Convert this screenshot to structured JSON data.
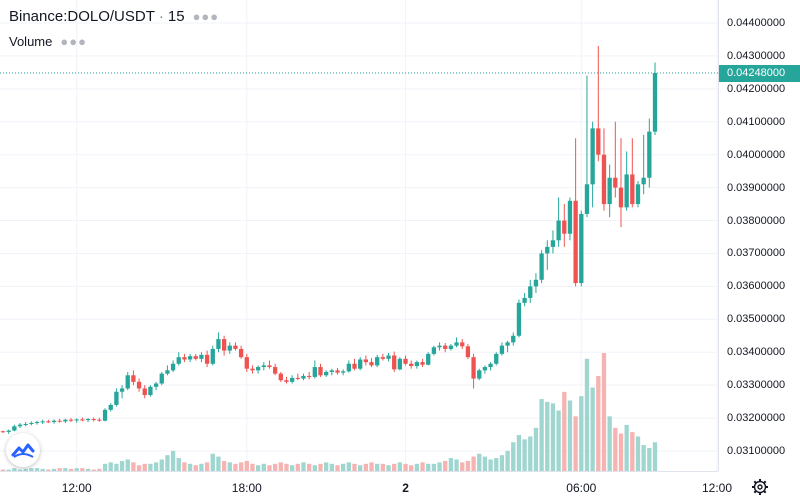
{
  "legend": {
    "symbol": "Binance:DOLO/USDT",
    "interval": "15",
    "volume_label": "Volume"
  },
  "price_axis": {
    "ticks": [
      "0.04400000",
      "0.04300000",
      "0.04200000",
      "0.04100000",
      "0.04000000",
      "0.03900000",
      "0.03800000",
      "0.03700000",
      "0.03600000",
      "0.03500000",
      "0.03400000",
      "0.03300000",
      "0.03200000",
      "0.03100000"
    ],
    "last_price": "0.04248000"
  },
  "time_axis": {
    "ticks": [
      "12:00",
      "18:00",
      "2",
      "06:00",
      "12:00"
    ]
  },
  "icons": {
    "menu": "more-horizontal-icon",
    "logo": "tradingview-logo-icon",
    "settings": "gear-icon"
  },
  "colors": {
    "up": "#26a69a",
    "down": "#ef5350",
    "up_volume": "#9fd6d0",
    "down_volume": "#f5b4b2",
    "last_price_line": "#26a69a"
  },
  "chart_data": {
    "type": "candlestick",
    "candles": [
      [
        0.0316,
        0.03162,
        0.03155,
        0.03158
      ],
      [
        0.03158,
        0.03165,
        0.03152,
        0.03162
      ],
      [
        0.03162,
        0.0318,
        0.0316,
        0.03175
      ],
      [
        0.03175,
        0.03185,
        0.0317,
        0.0318
      ],
      [
        0.0318,
        0.03188,
        0.03175,
        0.03182
      ],
      [
        0.03182,
        0.0319,
        0.03178,
        0.03185
      ],
      [
        0.03185,
        0.03192,
        0.0318,
        0.03188
      ],
      [
        0.03188,
        0.03195,
        0.03182,
        0.0319
      ],
      [
        0.0319,
        0.03195,
        0.03185,
        0.03188
      ],
      [
        0.03188,
        0.03196,
        0.03183,
        0.03192
      ],
      [
        0.03192,
        0.03198,
        0.03186,
        0.0319
      ],
      [
        0.0319,
        0.03198,
        0.03185,
        0.03195
      ],
      [
        0.03195,
        0.032,
        0.03188,
        0.03193
      ],
      [
        0.03193,
        0.03199,
        0.03186,
        0.03196
      ],
      [
        0.03196,
        0.03202,
        0.0319,
        0.03194
      ],
      [
        0.03194,
        0.032,
        0.03188,
        0.03197
      ],
      [
        0.03197,
        0.03202,
        0.0319,
        0.03195
      ],
      [
        0.03195,
        0.03201,
        0.03189,
        0.03192
      ],
      [
        0.03192,
        0.0323,
        0.0319,
        0.03225
      ],
      [
        0.03225,
        0.03245,
        0.0322,
        0.0324
      ],
      [
        0.0324,
        0.0329,
        0.03235,
        0.0328
      ],
      [
        0.0328,
        0.033,
        0.0326,
        0.0329
      ],
      [
        0.0329,
        0.0334,
        0.03285,
        0.0333
      ],
      [
        0.0333,
        0.03345,
        0.033,
        0.0331
      ],
      [
        0.0331,
        0.0332,
        0.0328,
        0.0329
      ],
      [
        0.0329,
        0.033,
        0.0326,
        0.0327
      ],
      [
        0.0327,
        0.033,
        0.03265,
        0.03295
      ],
      [
        0.03295,
        0.0331,
        0.03285,
        0.03305
      ],
      [
        0.03305,
        0.0334,
        0.033,
        0.03335
      ],
      [
        0.03335,
        0.0336,
        0.0333,
        0.03345
      ],
      [
        0.03345,
        0.03375,
        0.0334,
        0.03365
      ],
      [
        0.03365,
        0.034,
        0.0336,
        0.03385
      ],
      [
        0.03385,
        0.03395,
        0.0337,
        0.03378
      ],
      [
        0.03378,
        0.03395,
        0.0337,
        0.03388
      ],
      [
        0.03388,
        0.03395,
        0.03375,
        0.0338
      ],
      [
        0.0338,
        0.034,
        0.0337,
        0.03392
      ],
      [
        0.03392,
        0.03405,
        0.03355,
        0.03365
      ],
      [
        0.03365,
        0.0342,
        0.0336,
        0.0341
      ],
      [
        0.0341,
        0.0346,
        0.034,
        0.0344
      ],
      [
        0.0344,
        0.0345,
        0.0339,
        0.03405
      ],
      [
        0.03405,
        0.0343,
        0.03395,
        0.0342
      ],
      [
        0.0342,
        0.0343,
        0.03405,
        0.0341
      ],
      [
        0.0341,
        0.0342,
        0.0338,
        0.03385
      ],
      [
        0.03385,
        0.03395,
        0.0334,
        0.0335
      ],
      [
        0.0335,
        0.0336,
        0.03335,
        0.03345
      ],
      [
        0.03345,
        0.0336,
        0.03335,
        0.03355
      ],
      [
        0.03355,
        0.0337,
        0.03345,
        0.0336
      ],
      [
        0.0336,
        0.03375,
        0.0335,
        0.03355
      ],
      [
        0.03355,
        0.03365,
        0.0333,
        0.03335
      ],
      [
        0.03335,
        0.0334,
        0.0331,
        0.03315
      ],
      [
        0.03315,
        0.03325,
        0.03305,
        0.0331
      ],
      [
        0.0331,
        0.0333,
        0.03305,
        0.03322
      ],
      [
        0.03322,
        0.03335,
        0.03315,
        0.0332
      ],
      [
        0.0332,
        0.03335,
        0.03315,
        0.03328
      ],
      [
        0.03328,
        0.0334,
        0.03318,
        0.03325
      ],
      [
        0.03325,
        0.03375,
        0.0332,
        0.03355
      ],
      [
        0.03355,
        0.03365,
        0.03325,
        0.0333
      ],
      [
        0.0333,
        0.03345,
        0.03325,
        0.0334
      ],
      [
        0.0334,
        0.0335,
        0.0333,
        0.03345
      ],
      [
        0.03345,
        0.03352,
        0.03332,
        0.03338
      ],
      [
        0.03338,
        0.03348,
        0.0333,
        0.03342
      ],
      [
        0.03342,
        0.03375,
        0.03338,
        0.03365
      ],
      [
        0.03365,
        0.0338,
        0.03345,
        0.0335
      ],
      [
        0.0335,
        0.03385,
        0.03345,
        0.03378
      ],
      [
        0.03378,
        0.0339,
        0.0336,
        0.0337
      ],
      [
        0.0337,
        0.03382,
        0.03355,
        0.0336
      ],
      [
        0.0336,
        0.03392,
        0.03355,
        0.03385
      ],
      [
        0.03385,
        0.03395,
        0.03375,
        0.0338
      ],
      [
        0.0338,
        0.03398,
        0.03372,
        0.0339
      ],
      [
        0.0339,
        0.03402,
        0.0334,
        0.03348
      ],
      [
        0.03348,
        0.03385,
        0.03345,
        0.0338
      ],
      [
        0.0338,
        0.0339,
        0.0336,
        0.03365
      ],
      [
        0.03365,
        0.03375,
        0.0335,
        0.03358
      ],
      [
        0.03358,
        0.03375,
        0.0335,
        0.0337
      ],
      [
        0.0337,
        0.0338,
        0.03355,
        0.03362
      ],
      [
        0.03362,
        0.034,
        0.0336,
        0.03395
      ],
      [
        0.03395,
        0.0342,
        0.0339,
        0.03415
      ],
      [
        0.03415,
        0.0343,
        0.03405,
        0.0342
      ],
      [
        0.0342,
        0.03428,
        0.034,
        0.0341
      ],
      [
        0.0341,
        0.03425,
        0.03405,
        0.0342
      ],
      [
        0.0342,
        0.03445,
        0.03415,
        0.0343
      ],
      [
        0.0343,
        0.0344,
        0.0341,
        0.03418
      ],
      [
        0.03418,
        0.03425,
        0.0338,
        0.03385
      ],
      [
        0.03385,
        0.03395,
        0.0329,
        0.0332
      ],
      [
        0.0332,
        0.0335,
        0.03315,
        0.03345
      ],
      [
        0.03345,
        0.0336,
        0.03335,
        0.03355
      ],
      [
        0.03355,
        0.0337,
        0.03345,
        0.03365
      ],
      [
        0.03365,
        0.034,
        0.0336,
        0.03395
      ],
      [
        0.03395,
        0.0343,
        0.0339,
        0.0342
      ],
      [
        0.0342,
        0.03435,
        0.034,
        0.0343
      ],
      [
        0.0343,
        0.0346,
        0.0342,
        0.0345
      ],
      [
        0.0345,
        0.0356,
        0.03445,
        0.0355
      ],
      [
        0.0355,
        0.0358,
        0.0354,
        0.03565
      ],
      [
        0.03565,
        0.0362,
        0.0355,
        0.036
      ],
      [
        0.036,
        0.0364,
        0.0358,
        0.0362
      ],
      [
        0.0362,
        0.0371,
        0.0361,
        0.037
      ],
      [
        0.037,
        0.0374,
        0.0365,
        0.0372
      ],
      [
        0.0372,
        0.0377,
        0.037,
        0.0374
      ],
      [
        0.0374,
        0.0387,
        0.0372,
        0.038
      ],
      [
        0.038,
        0.0385,
        0.0372,
        0.0376
      ],
      [
        0.0376,
        0.0387,
        0.0374,
        0.0386
      ],
      [
        0.0386,
        0.0405,
        0.036,
        0.0361
      ],
      [
        0.0361,
        0.0383,
        0.036,
        0.0382
      ],
      [
        0.0382,
        0.0424,
        0.0381,
        0.0391
      ],
      [
        0.0391,
        0.041,
        0.0384,
        0.0408
      ],
      [
        0.0408,
        0.0433,
        0.0398,
        0.04
      ],
      [
        0.04,
        0.0408,
        0.0383,
        0.0385
      ],
      [
        0.0385,
        0.0397,
        0.0381,
        0.0393
      ],
      [
        0.0393,
        0.041,
        0.0387,
        0.039
      ],
      [
        0.039,
        0.0405,
        0.0378,
        0.0384
      ],
      [
        0.0384,
        0.0401,
        0.0383,
        0.0394
      ],
      [
        0.0394,
        0.0405,
        0.0384,
        0.0385
      ],
      [
        0.0385,
        0.0392,
        0.0384,
        0.0391
      ],
      [
        0.0391,
        0.0406,
        0.0388,
        0.0393
      ],
      [
        0.0393,
        0.0411,
        0.039,
        0.0407
      ],
      [
        0.0407,
        0.0428,
        0.0406,
        0.04248
      ]
    ],
    "volume": [
      0.01,
      0.01,
      0.02,
      0.01,
      0.015,
      0.02,
      0.02,
      0.015,
      0.01,
      0.015,
      0.02,
      0.02,
      0.015,
      0.02,
      0.02,
      0.015,
      0.01,
      0.015,
      0.05,
      0.06,
      0.05,
      0.07,
      0.08,
      0.06,
      0.04,
      0.05,
      0.05,
      0.06,
      0.08,
      0.11,
      0.14,
      0.09,
      0.06,
      0.05,
      0.04,
      0.05,
      0.06,
      0.12,
      0.1,
      0.07,
      0.06,
      0.05,
      0.06,
      0.07,
      0.05,
      0.04,
      0.05,
      0.04,
      0.05,
      0.06,
      0.05,
      0.04,
      0.05,
      0.06,
      0.05,
      0.04,
      0.05,
      0.06,
      0.05,
      0.04,
      0.05,
      0.06,
      0.05,
      0.04,
      0.05,
      0.06,
      0.05,
      0.05,
      0.04,
      0.05,
      0.06,
      0.05,
      0.04,
      0.05,
      0.06,
      0.05,
      0.05,
      0.06,
      0.07,
      0.09,
      0.08,
      0.06,
      0.07,
      0.1,
      0.12,
      0.1,
      0.08,
      0.09,
      0.11,
      0.14,
      0.2,
      0.25,
      0.22,
      0.24,
      0.3,
      0.5,
      0.48,
      0.47,
      0.42,
      0.55,
      0.49,
      0.38,
      0.52,
      0.78,
      0.58,
      0.66,
      0.82,
      0.38,
      0.3,
      0.26,
      0.32,
      0.27,
      0.24,
      0.18,
      0.16,
      0.2,
      0.36,
      0.4
    ],
    "ylim": [
      0.0305,
      0.0445
    ],
    "last_price": 0.04248
  }
}
